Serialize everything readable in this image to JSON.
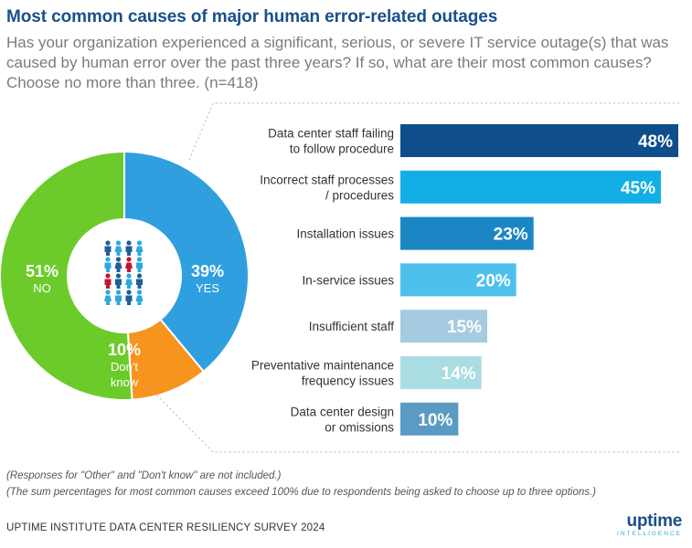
{
  "title": "Most common causes of major human error-related outages",
  "subtitle": "Has your organization experienced a significant, serious, or severe IT service outage(s) that was caused by human error over the past three years? If so, what are their most common causes? Choose no more than three. (n=418)",
  "notes": [
    "(Responses for \"Other\" and \"Don't know\" are not included.)",
    "(The sum percentages for most common causes exceed 100% due to respondents being asked to choose up to three options.)"
  ],
  "source": "UPTIME INSTITUTE DATA CENTER RESILIENCY SURVEY 2024",
  "logo": {
    "word": "uptime",
    "sub": "INTELLIGENCE"
  },
  "chart_data": [
    {
      "type": "pie",
      "style": "donut",
      "center_icon": "people-group-icon",
      "slices": [
        {
          "label": "YES",
          "value": 39,
          "display": "39%",
          "color": "#2f9fe0"
        },
        {
          "label": "Don't know",
          "value": 10,
          "display": "10%",
          "color": "#f7941d"
        },
        {
          "label": "NO",
          "value": 51,
          "display": "51%",
          "color": "#6ccb2b"
        }
      ]
    },
    {
      "type": "bar",
      "orientation": "horizontal",
      "categories": [
        [
          "Data center staff failing",
          "to follow procedure"
        ],
        [
          "Incorrect staff processes",
          "/ procedures"
        ],
        [
          "Installation issues"
        ],
        [
          "In-service issues"
        ],
        [
          "Insufficient staff"
        ],
        [
          "Preventative maintenance",
          "frequency issues"
        ],
        [
          "Data center design",
          "or omissions"
        ]
      ],
      "values": [
        48,
        45,
        23,
        20,
        15,
        14,
        10
      ],
      "value_labels": [
        "48%",
        "45%",
        "23%",
        "20%",
        "15%",
        "14%",
        "10%"
      ],
      "colors": [
        "#0e4f8b",
        "#13aee5",
        "#1a87c4",
        "#4dc1ec",
        "#a6cbe0",
        "#a9dde2",
        "#5a9bc4"
      ],
      "grid": false,
      "legend": "none"
    }
  ]
}
